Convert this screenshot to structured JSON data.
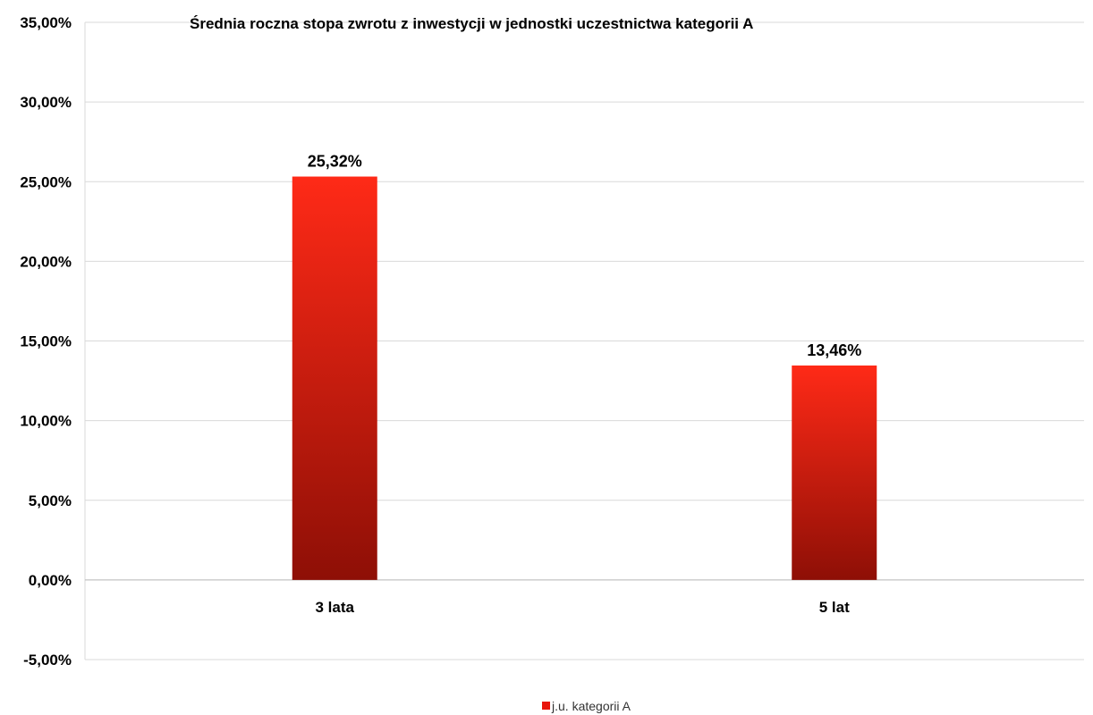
{
  "chart_data": {
    "type": "bar",
    "title": "Średnia roczna stopa zwrotu z inwestycji w jednostki uczestnictwa kategorii A",
    "xlabel": "",
    "ylabel": "",
    "categories": [
      "3 lata",
      "5 lat"
    ],
    "series": [
      {
        "name": "j.u. kategorii A",
        "values": [
          25.32,
          13.46
        ],
        "data_labels": [
          "25,32%",
          "13,46%"
        ],
        "color_top": "#ff2a17",
        "color_bottom": "#8e0f06"
      }
    ],
    "ylim": [
      -5,
      35
    ],
    "yticks": [
      35,
      30,
      25,
      20,
      15,
      10,
      5,
      0,
      -5
    ],
    "ytick_labels": [
      "35,00%",
      "30,00%",
      "25,00%",
      "20,00%",
      "15,00%",
      "10,00%",
      "5,00%",
      "0,00%",
      "-5,00%"
    ],
    "grid": true,
    "legend_position": "bottom"
  }
}
